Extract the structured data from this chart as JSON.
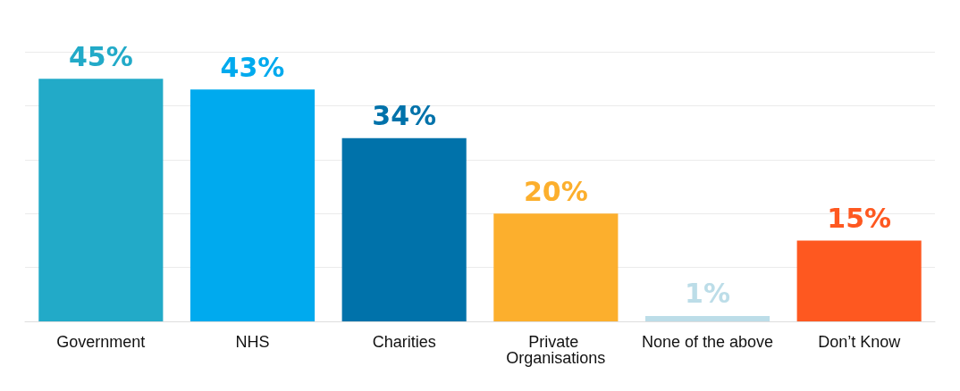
{
  "chart_data": {
    "type": "bar",
    "categories": [
      "Government",
      "NHS",
      "Charities",
      "Private Organisations",
      "None of the above",
      "Don’t Know"
    ],
    "values": [
      45,
      43,
      34,
      20,
      1,
      15
    ],
    "colors": [
      "#22aac8",
      "#00aaee",
      "#0072aa",
      "#fcaf2d",
      "#bcdde8",
      "#fe5820"
    ],
    "value_labels": [
      "45%",
      "43%",
      "34%",
      "20%",
      "1%",
      "15%"
    ],
    "grid": "y"
  }
}
